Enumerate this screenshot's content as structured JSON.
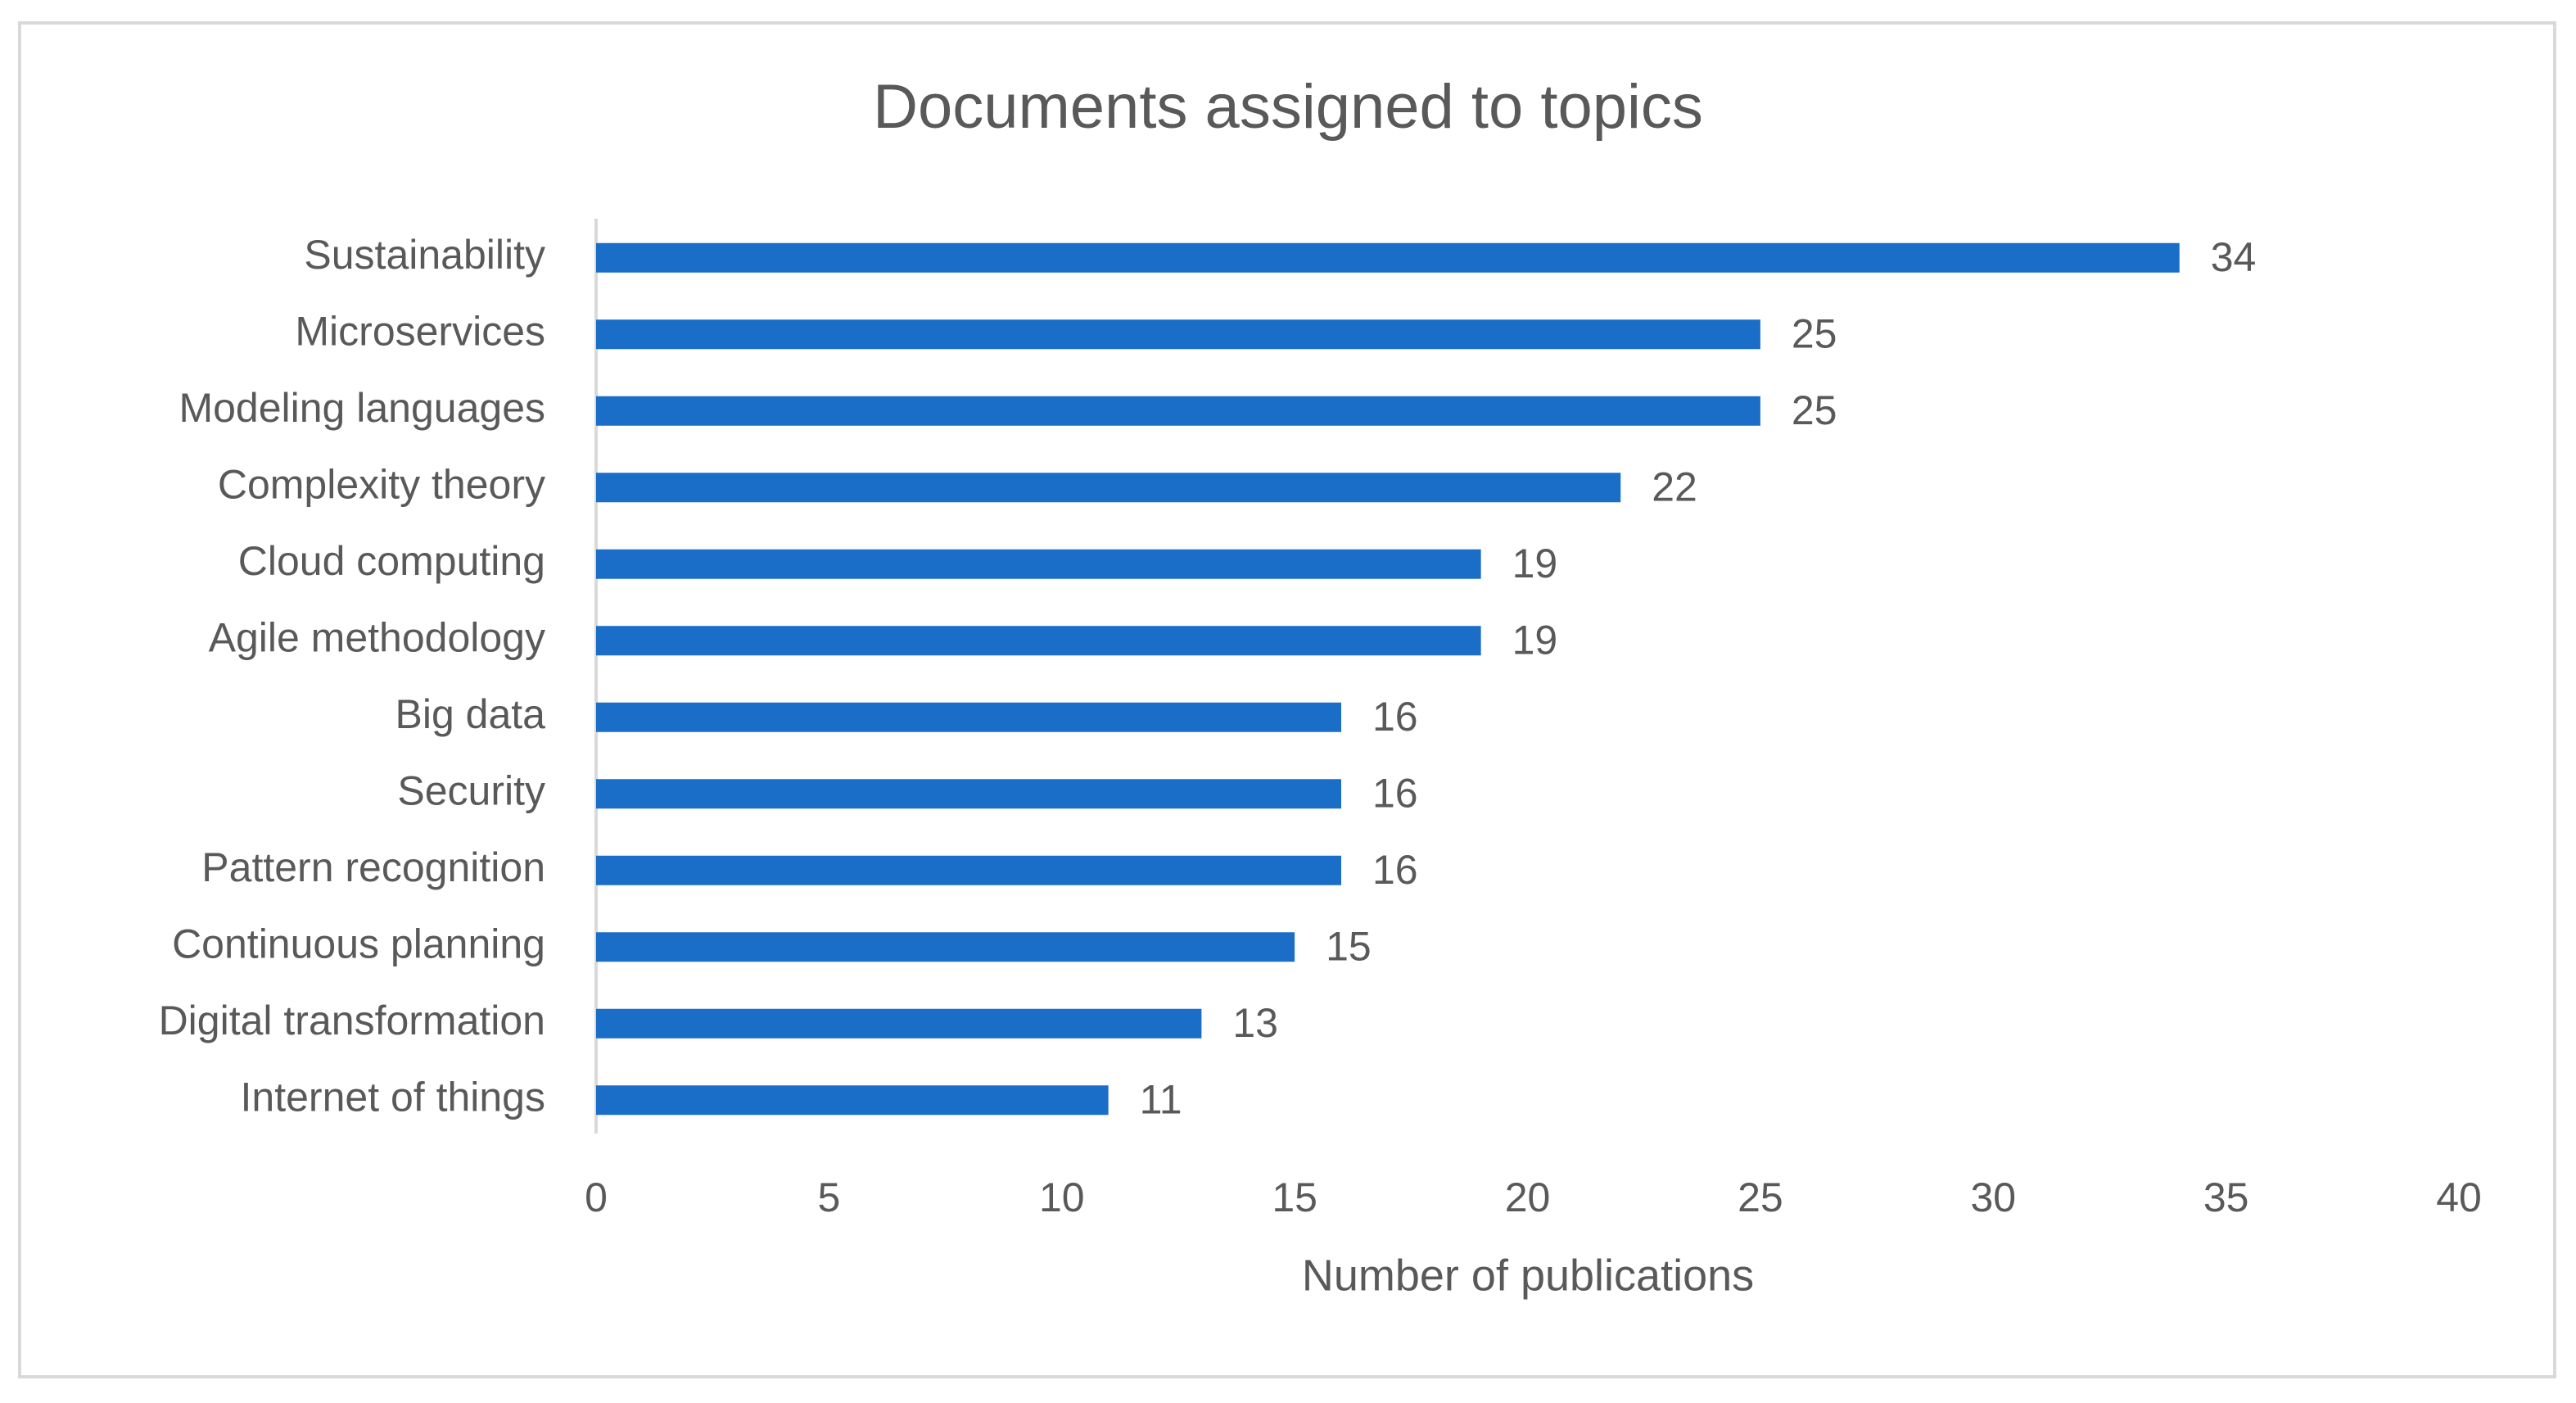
{
  "chart_data": {
    "type": "barh",
    "title": "Documents assigned to topics",
    "x_label": "Number of publications",
    "categories": [
      "Sustainability",
      "Microservices",
      "Modeling languages",
      "Complexity theory",
      "Cloud computing",
      "Agile methodology",
      "Big data",
      "Security",
      "Pattern recognition",
      "Continuous planning",
      "Digital transformation",
      "Internet of things"
    ],
    "values": [
      34,
      25,
      25,
      22,
      19,
      19,
      16,
      16,
      16,
      15,
      13,
      11
    ],
    "color": "#1a6ec7",
    "xlim": [
      0,
      40
    ],
    "xticks": [
      0,
      5,
      10,
      15,
      20,
      25,
      30,
      35,
      40
    ],
    "grid": false
  }
}
